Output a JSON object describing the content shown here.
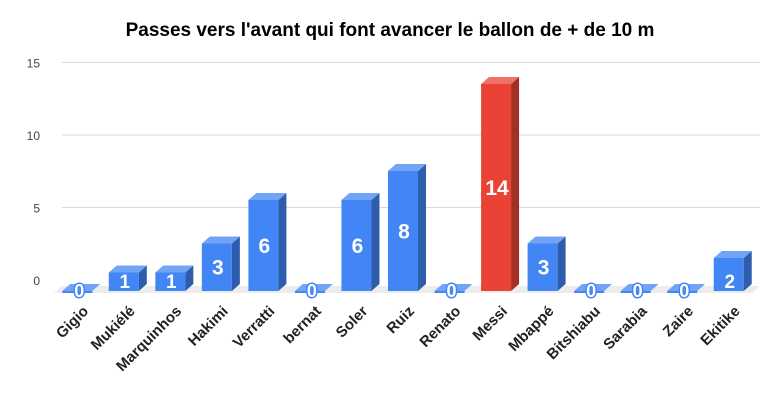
{
  "chart_data": {
    "type": "bar",
    "title": "Passes vers l'avant qui font avancer le ballon de + de 10 m",
    "xlabel": "",
    "ylabel": "",
    "ylim": [
      0,
      15
    ],
    "yticks": [
      "0",
      "5",
      "10",
      "15"
    ],
    "grid": true,
    "legend": "none",
    "categories": [
      "Gigio",
      "Mukiélé",
      "Marquinhos",
      "Hakimi",
      "Verratti",
      "bernat",
      "Soler",
      "Ruiz",
      "Renato",
      "Messi",
      "Mbappé",
      "Bitshiabu",
      "Sarabia",
      "Zaire",
      "Ekitike"
    ],
    "values": [
      0,
      1,
      1,
      3,
      6,
      0,
      6,
      8,
      0,
      14,
      3,
      0,
      0,
      0,
      2
    ],
    "data_labels": [
      "0",
      "1",
      "1",
      "3",
      "6",
      "0",
      "6",
      "8",
      "0",
      "14",
      "3",
      "0",
      "0",
      "0",
      "2"
    ],
    "colors": {
      "default": "#4285f4",
      "highlight": "#ea4335",
      "highlight_category": "Messi"
    }
  }
}
